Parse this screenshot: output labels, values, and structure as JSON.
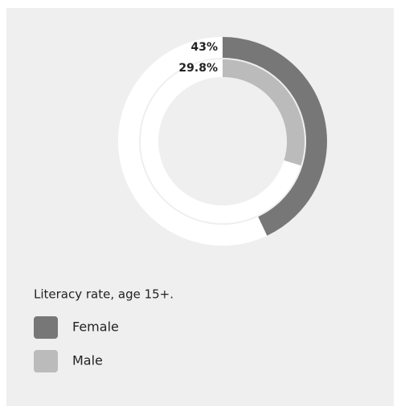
{
  "chart_data": {
    "type": "radial_bar",
    "title": "Literacy rate, age 15+.",
    "series": [
      {
        "name": "Female",
        "color": "#777777",
        "values": [
          43
        ],
        "value_labels": [
          "43%"
        ]
      },
      {
        "name": "Male",
        "color": "#bbbbbb",
        "values": [
          29.8
        ],
        "value_labels": [
          "29.8%"
        ]
      }
    ],
    "ylim": [
      0,
      100
    ],
    "track_color": "#ffffff"
  }
}
